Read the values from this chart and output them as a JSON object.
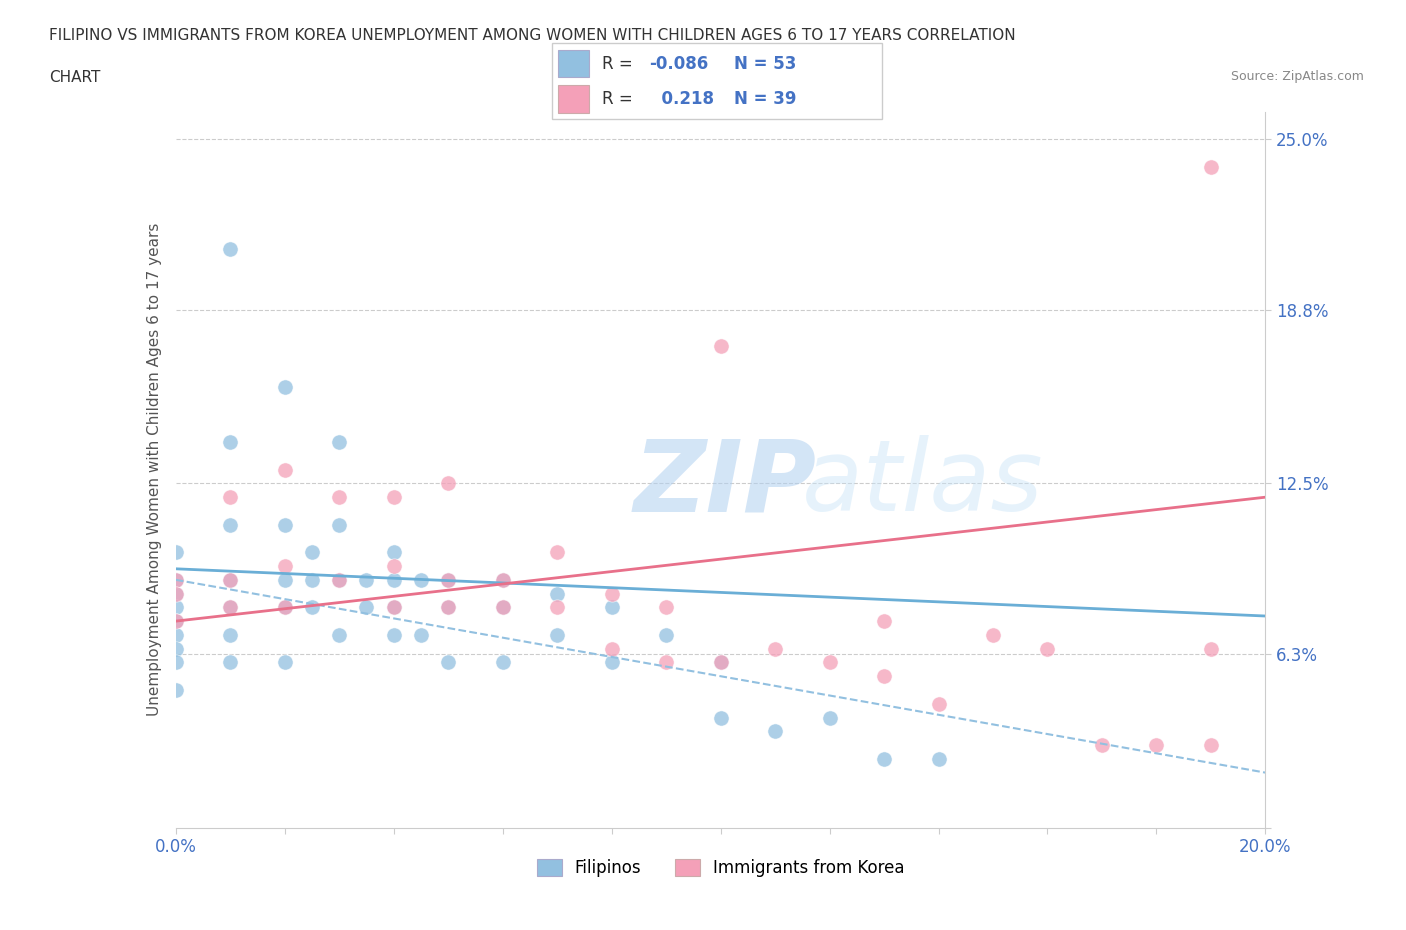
{
  "title_line1": "FILIPINO VS IMMIGRANTS FROM KOREA UNEMPLOYMENT AMONG WOMEN WITH CHILDREN AGES 6 TO 17 YEARS CORRELATION",
  "title_line2": "CHART",
  "source_text": "Source: ZipAtlas.com",
  "ylabel": "Unemployment Among Women with Children Ages 6 to 17 years",
  "xlim": [
    0.0,
    0.2
  ],
  "ylim": [
    0.0,
    0.26
  ],
  "yticks": [
    0.0,
    0.063,
    0.125,
    0.188,
    0.25
  ],
  "ytick_labels": [
    "",
    "6.3%",
    "12.5%",
    "18.8%",
    "25.0%"
  ],
  "color_filipino": "#92c0e0",
  "color_korea": "#f4a0b8",
  "line_color_filipino_solid": "#6aaed6",
  "line_color_filipino_dash": "#92c0e0",
  "line_color_korea": "#e8708a",
  "watermark_zip": "#b8d8f0",
  "watermark_atlas": "#c8e4f8",
  "R_filipino": -0.086,
  "N_filipino": 53,
  "R_korea": 0.218,
  "N_korea": 39,
  "filipinos_x": [
    0.0,
    0.0,
    0.0,
    0.0,
    0.0,
    0.0,
    0.0,
    0.0,
    0.0,
    0.01,
    0.01,
    0.01,
    0.01,
    0.01,
    0.01,
    0.01,
    0.02,
    0.02,
    0.02,
    0.02,
    0.02,
    0.025,
    0.025,
    0.025,
    0.03,
    0.03,
    0.03,
    0.03,
    0.035,
    0.035,
    0.04,
    0.04,
    0.04,
    0.04,
    0.045,
    0.045,
    0.05,
    0.05,
    0.05,
    0.06,
    0.06,
    0.06,
    0.07,
    0.07,
    0.08,
    0.08,
    0.09,
    0.1,
    0.1,
    0.11,
    0.12,
    0.13,
    0.14
  ],
  "filipinos_y": [
    0.1,
    0.09,
    0.085,
    0.08,
    0.075,
    0.07,
    0.065,
    0.06,
    0.05,
    0.21,
    0.14,
    0.11,
    0.09,
    0.08,
    0.07,
    0.06,
    0.16,
    0.11,
    0.09,
    0.08,
    0.06,
    0.1,
    0.09,
    0.08,
    0.14,
    0.11,
    0.09,
    0.07,
    0.09,
    0.08,
    0.1,
    0.09,
    0.08,
    0.07,
    0.09,
    0.07,
    0.09,
    0.08,
    0.06,
    0.09,
    0.08,
    0.06,
    0.085,
    0.07,
    0.08,
    0.06,
    0.07,
    0.06,
    0.04,
    0.035,
    0.04,
    0.025,
    0.025
  ],
  "korea_x": [
    0.0,
    0.0,
    0.0,
    0.01,
    0.01,
    0.01,
    0.02,
    0.02,
    0.02,
    0.03,
    0.03,
    0.04,
    0.04,
    0.04,
    0.05,
    0.05,
    0.05,
    0.06,
    0.06,
    0.07,
    0.07,
    0.08,
    0.08,
    0.09,
    0.09,
    0.1,
    0.1,
    0.11,
    0.12,
    0.13,
    0.13,
    0.14,
    0.15,
    0.16,
    0.17,
    0.18,
    0.19,
    0.19,
    0.19
  ],
  "korea_y": [
    0.09,
    0.085,
    0.075,
    0.12,
    0.09,
    0.08,
    0.13,
    0.095,
    0.08,
    0.12,
    0.09,
    0.12,
    0.095,
    0.08,
    0.125,
    0.09,
    0.08,
    0.09,
    0.08,
    0.1,
    0.08,
    0.085,
    0.065,
    0.08,
    0.06,
    0.175,
    0.06,
    0.065,
    0.06,
    0.075,
    0.055,
    0.045,
    0.07,
    0.065,
    0.03,
    0.03,
    0.24,
    0.065,
    0.03
  ]
}
